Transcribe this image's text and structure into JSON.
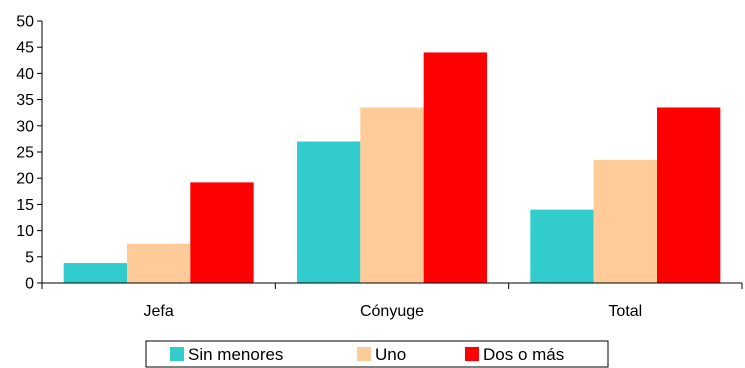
{
  "chart_data": {
    "type": "bar",
    "categories": [
      "Jefa",
      "Cónyuge",
      "Total"
    ],
    "series": [
      {
        "name": "Sin menores",
        "color": "#33CCCC",
        "values": [
          3.8,
          27.0,
          14.0
        ]
      },
      {
        "name": "Uno",
        "color": "#FFCC99",
        "values": [
          7.5,
          33.5,
          23.5
        ]
      },
      {
        "name": "Dos o más",
        "color": "#FF0000",
        "values": [
          19.2,
          44.0,
          33.5
        ]
      }
    ],
    "ylim": [
      0,
      50
    ],
    "yticks": [
      0,
      5,
      10,
      15,
      20,
      25,
      30,
      35,
      40,
      45,
      50
    ],
    "grid": false,
    "legend_position": "bottom"
  }
}
